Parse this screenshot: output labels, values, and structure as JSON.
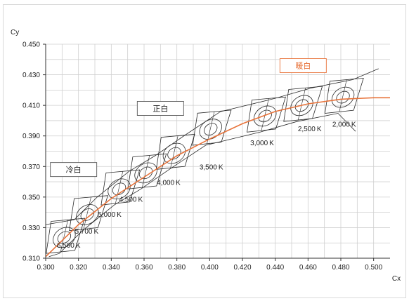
{
  "chart_data": {
    "type": "line",
    "xlabel": "Cx",
    "ylabel": "Cy",
    "xlim": [
      0.3,
      0.51
    ],
    "ylim": [
      0.31,
      0.45
    ],
    "x_ticks": [
      "0.300",
      "0.320",
      "0.340",
      "0.360",
      "0.380",
      "0.400",
      "0.420",
      "0.440",
      "0.460",
      "0.480",
      "0.500"
    ],
    "y_ticks": [
      "0.310",
      "0.330",
      "0.350",
      "0.370",
      "0.390",
      "0.410",
      "0.430",
      "0.450"
    ],
    "grid": true,
    "series": [
      {
        "color": "#e8733a",
        "x": [
          0.3,
          0.32,
          0.34,
          0.36,
          0.38,
          0.4,
          0.42,
          0.44,
          0.46,
          0.48,
          0.5,
          0.51
        ],
        "y": [
          0.311,
          0.332,
          0.349,
          0.363,
          0.377,
          0.388,
          0.398,
          0.406,
          0.411,
          0.414,
          0.415,
          0.415
        ]
      }
    ],
    "cct_labels": [
      {
        "text": "2,000 K",
        "x": 0.482,
        "y": 0.396
      },
      {
        "text": "2,500 K",
        "x": 0.461,
        "y": 0.393
      },
      {
        "text": "3,000 K",
        "x": 0.432,
        "y": 0.384
      },
      {
        "text": "3,500 K",
        "x": 0.401,
        "y": 0.368
      },
      {
        "text": "4,000 K",
        "x": 0.375,
        "y": 0.358
      },
      {
        "text": "4,500 K",
        "x": 0.352,
        "y": 0.347
      },
      {
        "text": "5,000 K",
        "x": 0.339,
        "y": 0.337
      },
      {
        "text": "5,700 K",
        "x": 0.325,
        "y": 0.326
      },
      {
        "text": "6,500 K",
        "x": 0.314,
        "y": 0.317
      }
    ],
    "region_labels": [
      {
        "text": "暖白",
        "x": 0.457,
        "y": 0.436,
        "color": "#e8733a"
      },
      {
        "text": "正白",
        "x": 0.37,
        "y": 0.408,
        "color": "#222222"
      },
      {
        "text": "冷白",
        "x": 0.317,
        "y": 0.368,
        "color": "#222222"
      }
    ],
    "cells": [
      {
        "cx": 0.3113,
        "cy": 0.3236
      },
      {
        "cx": 0.3254,
        "cy": 0.3385
      },
      {
        "cx": 0.3448,
        "cy": 0.3553
      },
      {
        "cx": 0.3611,
        "cy": 0.3658
      },
      {
        "cx": 0.3784,
        "cy": 0.3786
      },
      {
        "cx": 0.4006,
        "cy": 0.3944
      },
      {
        "cx": 0.4338,
        "cy": 0.403
      },
      {
        "cx": 0.4562,
        "cy": 0.4099
      },
      {
        "cx": 0.4813,
        "cy": 0.4153
      }
    ]
  }
}
